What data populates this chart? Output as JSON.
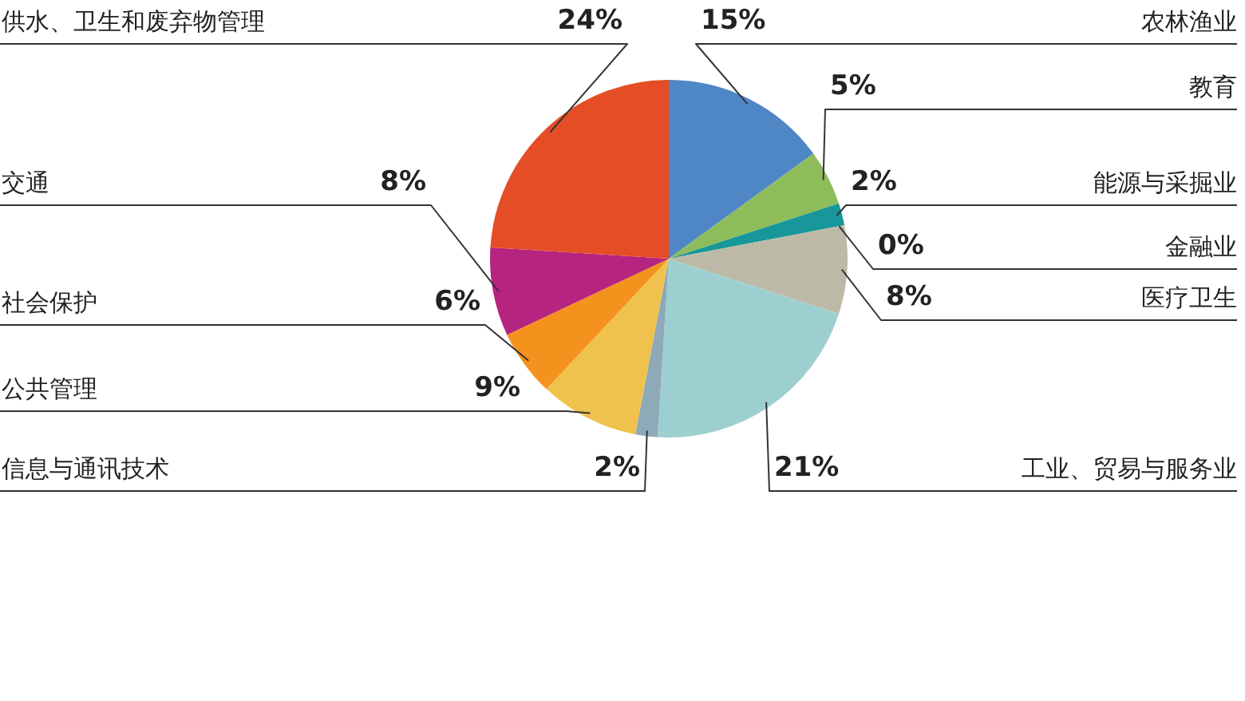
{
  "chart_data": {
    "type": "pie",
    "categories": [
      "农林渔业",
      "教育",
      "能源与采掘业",
      "金融业",
      "医疗卫生",
      "工业、贸易与服务业",
      "信息与通讯技术",
      "公共管理",
      "社会保护",
      "交通",
      "供水、卫生和废弃物管理"
    ],
    "values": [
      15,
      5,
      2,
      0,
      8,
      21,
      2,
      9,
      6,
      8,
      24
    ],
    "colors": [
      "#4f86c6",
      "#8fbc5a",
      "#17979a",
      "#1f4f6f",
      "#bcbaa6",
      "#9dcfd1",
      "#8ea9b8",
      "#efc24d",
      "#f5921e",
      "#b5247f",
      "#e44d26"
    ],
    "value_labels": [
      "15%",
      "5%",
      "2%",
      "0%",
      "8%",
      "21%",
      "2%",
      "9%",
      "6%",
      "8%",
      "24%"
    ]
  }
}
